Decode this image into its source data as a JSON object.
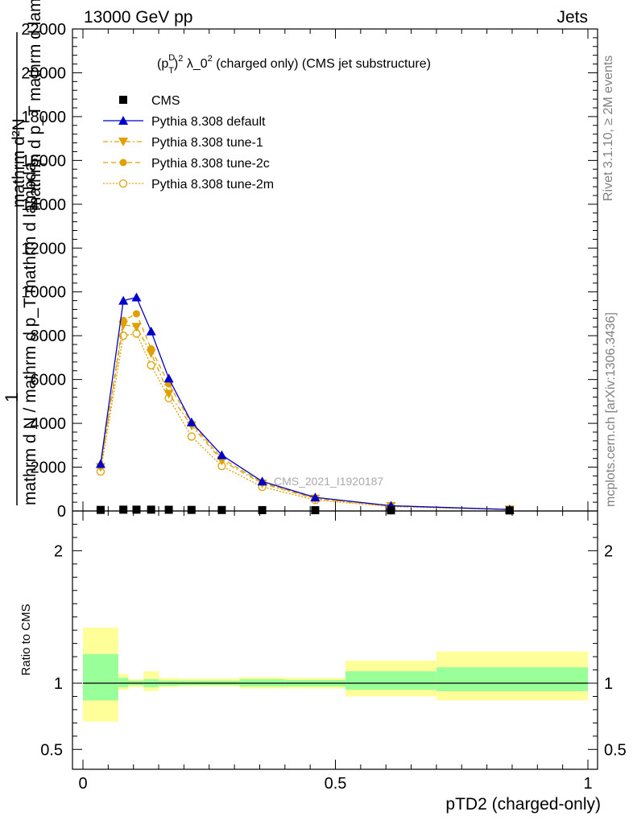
{
  "header": {
    "left": "13000 GeV pp",
    "right": "Jets"
  },
  "side_labels": {
    "rivet": "Rivet 3.1.10, ≥ 2M events",
    "mcplots": "mcplots.cern.ch [arXiv:1306.3436]"
  },
  "colors": {
    "data": "#000000",
    "default": "#0000cc",
    "tune": "#e0a000",
    "band_inner": "#99ff99",
    "band_outer": "#ffff99"
  },
  "chart_data": [
    {
      "type": "line",
      "title": "(p_T^D)^2 λ_0^2 (charged only) (CMS jet substructure)",
      "title_parts": {
        "p": "(p",
        "sup_d": "D",
        "sub_t": "T",
        "close": ")",
        "sup_2a": "2",
        "mid": " λ_0",
        "sup_2b": "2",
        "tail": " (charged only) (CMS jet substructure)"
      },
      "ylabel": {
        "num_top": "mathrm d²N",
        "num_bottom": "mathrm d p_T mathrm d lambda",
        "one": "1",
        "den": "mathrm d N / mathrm d p_T mathrm d lambda",
        "sub_t": "T"
      },
      "watermark": "CMS_2021_I1920187",
      "xlim": [
        0,
        1
      ],
      "ylim": [
        0,
        22000
      ],
      "yticks": [
        0,
        2000,
        4000,
        6000,
        8000,
        10000,
        12000,
        14000,
        16000,
        18000,
        20000,
        22000
      ],
      "ytick_labels": [
        "0",
        "2000",
        "4000",
        "6000",
        "8000",
        "10000",
        "12000",
        "14000",
        "16000",
        "18000",
        "20000",
        "22000"
      ],
      "legend": {
        "position": "top-left",
        "entries": [
          "CMS",
          "Pythia 8.308 default",
          "Pythia 8.308 tune-1",
          "Pythia 8.308 tune-2c",
          "Pythia 8.308 tune-2m"
        ]
      },
      "series": [
        {
          "name": "CMS",
          "x": [
            0.035,
            0.08,
            0.106,
            0.135,
            0.17,
            0.215,
            0.275,
            0.355,
            0.46,
            0.61,
            0.845
          ],
          "values": [
            50,
            60,
            60,
            60,
            55,
            50,
            45,
            40,
            35,
            30,
            25
          ]
        },
        {
          "name": "Pythia 8.308 default",
          "x": [
            0.035,
            0.08,
            0.106,
            0.135,
            0.17,
            0.215,
            0.275,
            0.355,
            0.46,
            0.61,
            0.845
          ],
          "values": [
            2150,
            9600,
            9750,
            8200,
            6050,
            4050,
            2550,
            1350,
            620,
            240,
            70
          ]
        },
        {
          "name": "Pythia 8.308 tune-1",
          "x": [
            0.035,
            0.08,
            0.106,
            0.135,
            0.17,
            0.215,
            0.275,
            0.355,
            0.46,
            0.61,
            0.845
          ],
          "values": [
            2000,
            8500,
            8400,
            7200,
            5350,
            3900,
            2300,
            1250,
            560,
            220,
            65
          ]
        },
        {
          "name": "Pythia 8.308 tune-2c",
          "x": [
            0.035,
            0.08,
            0.106,
            0.135,
            0.17,
            0.215,
            0.275,
            0.355,
            0.46,
            0.61,
            0.845
          ],
          "values": [
            2050,
            8700,
            9000,
            7400,
            5800,
            4000,
            2400,
            1300,
            580,
            230,
            68
          ]
        },
        {
          "name": "Pythia 8.308 tune-2m",
          "x": [
            0.035,
            0.08,
            0.106,
            0.135,
            0.17,
            0.215,
            0.275,
            0.355,
            0.46,
            0.61,
            0.845
          ],
          "values": [
            1800,
            8000,
            8100,
            6650,
            5150,
            3400,
            2050,
            1100,
            500,
            200,
            60
          ]
        }
      ]
    },
    {
      "type": "area",
      "ylabel": "Ratio to CMS",
      "xlabel": "pTD2 (charged-only)",
      "xlim": [
        0,
        1
      ],
      "ylim": [
        0.35,
        2.3
      ],
      "yticks": [
        0.5,
        1,
        2
      ],
      "ytick_labels": [
        "0.5",
        "1",
        "2"
      ],
      "xticks": [
        0,
        0.5,
        1
      ],
      "xtick_labels": [
        "0",
        "0.5",
        "1"
      ],
      "bins": [
        {
          "lo": 0.0,
          "hi": 0.07,
          "inner": [
            0.87,
            1.22
          ],
          "outer": [
            0.71,
            1.42
          ]
        },
        {
          "lo": 0.07,
          "hi": 0.09,
          "inner": [
            0.97,
            1.04
          ],
          "outer": [
            0.95,
            1.07
          ]
        },
        {
          "lo": 0.09,
          "hi": 0.12,
          "inner": [
            0.985,
            1.02
          ],
          "outer": [
            0.97,
            1.03
          ]
        },
        {
          "lo": 0.12,
          "hi": 0.15,
          "inner": [
            0.97,
            1.03
          ],
          "outer": [
            0.94,
            1.09
          ]
        },
        {
          "lo": 0.15,
          "hi": 0.19,
          "inner": [
            0.98,
            1.02
          ],
          "outer": [
            0.97,
            1.04
          ]
        },
        {
          "lo": 0.19,
          "hi": 0.24,
          "inner": [
            0.985,
            1.02
          ],
          "outer": [
            0.975,
            1.035
          ]
        },
        {
          "lo": 0.24,
          "hi": 0.31,
          "inner": [
            0.985,
            1.02
          ],
          "outer": [
            0.975,
            1.035
          ]
        },
        {
          "lo": 0.31,
          "hi": 0.4,
          "inner": [
            0.975,
            1.03
          ],
          "outer": [
            0.96,
            1.045
          ]
        },
        {
          "lo": 0.4,
          "hi": 0.52,
          "inner": [
            0.975,
            1.025
          ],
          "outer": [
            0.96,
            1.04
          ]
        },
        {
          "lo": 0.52,
          "hi": 0.7,
          "inner": [
            0.95,
            1.09
          ],
          "outer": [
            0.9,
            1.17
          ]
        },
        {
          "lo": 0.7,
          "hi": 1.0,
          "inner": [
            0.94,
            1.12
          ],
          "outer": [
            0.87,
            1.24
          ]
        }
      ]
    }
  ]
}
